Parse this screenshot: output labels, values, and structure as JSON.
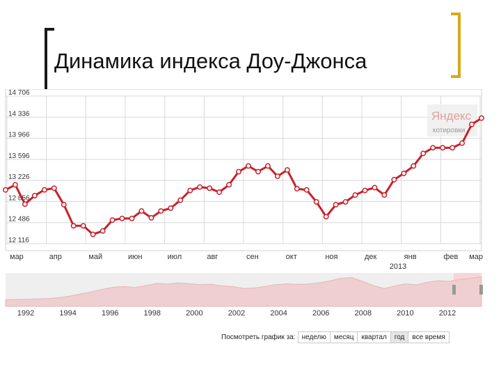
{
  "slide": {
    "title": "Динамика индекса Доу-Джонса"
  },
  "watermark": {
    "brand": "Яндекс",
    "subtitle": "котировки"
  },
  "period_selector": {
    "label": "Посмотреть график за:",
    "options": [
      "неделю",
      "месяц",
      "квартал",
      "год",
      "все время"
    ],
    "selected": "год"
  },
  "colors": {
    "line": "#c8202a",
    "marker_fill": "#ffffff",
    "grid": "#d8d8d8",
    "overview_fill": "#efcfcf",
    "overview_highlight": "#f6d6d6"
  },
  "chart_data": [
    {
      "type": "line",
      "title": "",
      "y_ticks": [
        "12 116",
        "12 486",
        "12 856",
        "13 226",
        "13 596",
        "13 966",
        "14 336",
        "14 706"
      ],
      "ylim": [
        12116,
        14706
      ],
      "x_ticks": [
        "мар",
        "апр",
        "май",
        "июн",
        "июл",
        "авг",
        "сен",
        "окт",
        "ноя",
        "дек",
        "янв",
        "фев",
        "мар"
      ],
      "x_sub_label": "2013",
      "grid": true,
      "series": [
        {
          "values": [
            13060,
            13150,
            12810,
            12960,
            13060,
            13090,
            12800,
            12430,
            12430,
            12280,
            12340,
            12530,
            12560,
            12560,
            12690,
            12570,
            12690,
            12740,
            12880,
            13050,
            13110,
            13090,
            13020,
            13150,
            13380,
            13480,
            13380,
            13480,
            13300,
            13410,
            13080,
            13060,
            12850,
            12590,
            12800,
            12850,
            12970,
            13050,
            13100,
            12970,
            13240,
            13350,
            13480,
            13700,
            13800,
            13800,
            13800,
            13880,
            14210,
            14320
          ]
        }
      ]
    },
    {
      "type": "area",
      "title": "",
      "x_ticks": [
        "1992",
        "1994",
        "1996",
        "1998",
        "2000",
        "2002",
        "2004",
        "2006",
        "2008",
        "2010",
        "2012"
      ],
      "values": [
        3200,
        3300,
        3400,
        3600,
        3800,
        4200,
        5000,
        6000,
        7000,
        8200,
        9200,
        9500,
        9000,
        10000,
        11000,
        10700,
        11200,
        10800,
        10400,
        10600,
        9800,
        9500,
        8600,
        8800,
        9600,
        10400,
        10800,
        10600,
        10700,
        11300,
        12200,
        13500,
        13800,
        12000,
        10000,
        8500,
        9800,
        10800,
        10300,
        11600,
        12300,
        12000,
        12900,
        13400,
        14200
      ]
    }
  ]
}
